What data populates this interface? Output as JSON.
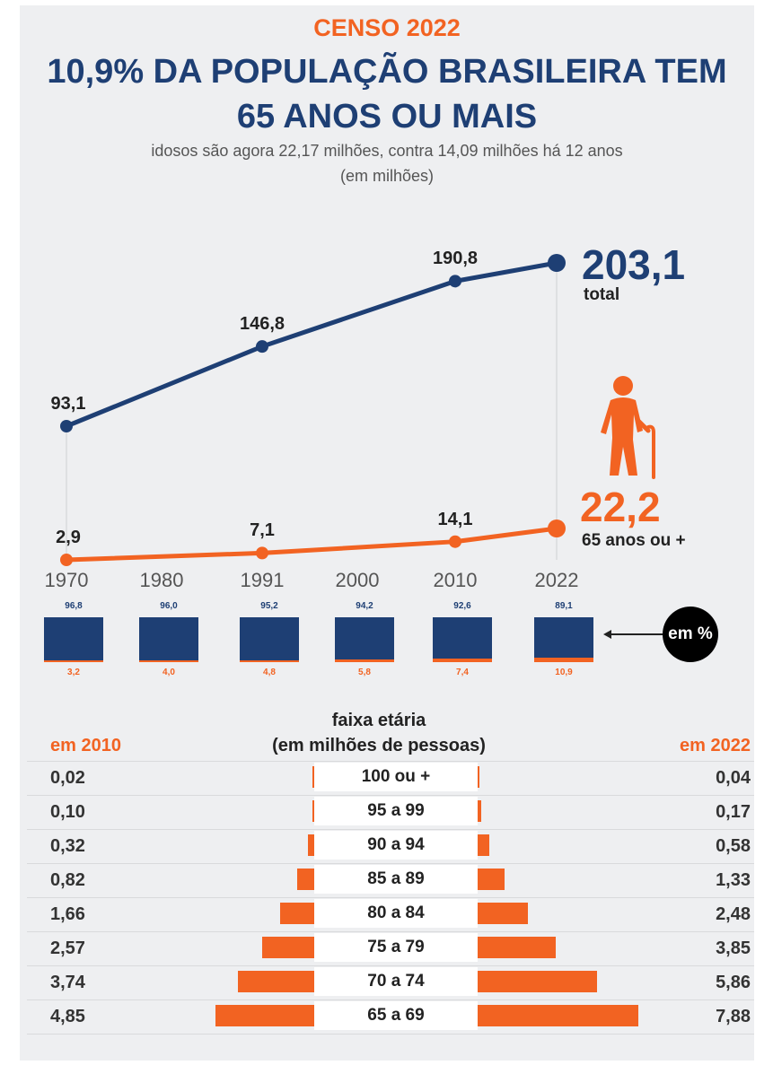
{
  "header": {
    "kicker": "CENSO 2022",
    "headline_line1": "10,9% DA POPULAÇÃO BRASILEIRA TEM",
    "headline_line2": "65 ANOS OU MAIS",
    "subtitle": "idosos são agora 22,17 milhões, contra 14,09 milhões há 12 anos",
    "unit": "(em milhões)"
  },
  "colors": {
    "navy": "#1e3f74",
    "orange": "#f26322",
    "background": "#eeeff1"
  },
  "icons": {
    "elderly": "elderly-person-with-cane-icon",
    "arrow": "arrow-left-icon"
  },
  "chart_data": [
    {
      "type": "line",
      "x": [
        "1970",
        "1980",
        "1991",
        "2000",
        "2010",
        "2022"
      ],
      "series": [
        {
          "values": [
            93.1,
            null,
            146.8,
            null,
            190.8,
            203.1
          ],
          "labels": [
            "93,1",
            "",
            "146,8",
            "",
            "190,8",
            ""
          ],
          "color": "#1e3f74"
        },
        {
          "values": [
            2.9,
            null,
            7.1,
            null,
            14.1,
            22.2
          ],
          "labels": [
            "2,9",
            "",
            "7,1",
            "",
            "14,1",
            ""
          ],
          "color": "#f26322"
        }
      ],
      "end_callouts": [
        {
          "value": "203,1",
          "caption": "total"
        },
        {
          "value": "22,2",
          "caption": "65 anos ou +"
        }
      ]
    },
    {
      "type": "bar",
      "label": "em %",
      "categories": [
        "1970",
        "1980",
        "1991",
        "2000",
        "2010",
        "2022"
      ],
      "top_values": [
        96.8,
        96.0,
        95.2,
        94.2,
        92.6,
        89.1
      ],
      "top_labels": [
        "96,8",
        "96,0",
        "95,2",
        "94,2",
        "92,6",
        "89,1"
      ],
      "bottom_values": [
        3.2,
        4.0,
        4.8,
        5.8,
        7.4,
        10.9
      ],
      "bottom_labels": [
        "3,2",
        "4,0",
        "4,8",
        "5,8",
        "7,4",
        "10,9"
      ]
    },
    {
      "type": "bar",
      "title": "faixa etária",
      "subtitle": "(em milhões de pessoas)",
      "left_label": "em 2010",
      "right_label": "em 2022",
      "categories": [
        "100 ou +",
        "95 a 99",
        "90 a 94",
        "85 a 89",
        "80 a 84",
        "75 a 79",
        "70 a 74",
        "65 a 69"
      ],
      "left_values": [
        0.02,
        0.1,
        0.32,
        0.82,
        1.66,
        2.57,
        3.74,
        4.85
      ],
      "left_labels": [
        "0,02",
        "0,10",
        "0,32",
        "0,82",
        "1,66",
        "2,57",
        "3,74",
        "4,85"
      ],
      "right_values": [
        0.04,
        0.17,
        0.58,
        1.33,
        2.48,
        3.85,
        5.86,
        7.88
      ],
      "right_labels": [
        "0,04",
        "0,17",
        "0,58",
        "1,33",
        "2,48",
        "3,85",
        "5,86",
        "7,88"
      ]
    }
  ]
}
